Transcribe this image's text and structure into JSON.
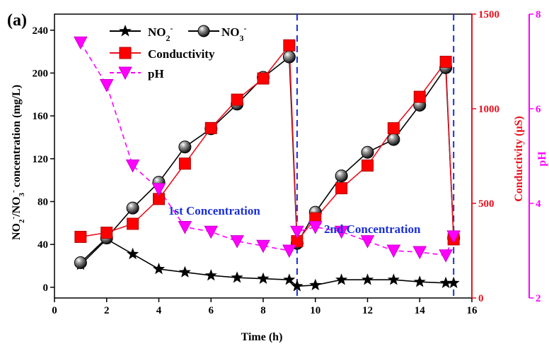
{
  "chart_data": {
    "type": "line",
    "panel_label": "(a)",
    "xlabel": "Time (h)",
    "xlim": [
      0,
      16
    ],
    "xticks": [
      0,
      2,
      4,
      6,
      8,
      10,
      12,
      14,
      16
    ],
    "left_axis": {
      "label": "NO2-/NO3- concentration (mg/L)",
      "label_parts": {
        "a": "NO",
        "sub1": "2",
        "sup1": "-",
        "b": "/NO",
        "sub2": "3",
        "sup2": "-",
        "c": " concentration (mg/L)"
      },
      "ylim": [
        -10,
        255
      ],
      "ticks": [
        0,
        40,
        80,
        120,
        160,
        200,
        240
      ],
      "color": "#000000"
    },
    "right_axis_1": {
      "label": "Conductivity (μS)",
      "ylim": [
        0,
        1500
      ],
      "ticks": [
        0,
        500,
        1000,
        1500
      ],
      "color": "#e8111f"
    },
    "right_axis_2": {
      "label": "pH",
      "ylim": [
        2,
        8
      ],
      "ticks": [
        2,
        4,
        6,
        8
      ],
      "color": "#ff00ff"
    },
    "legend": [
      {
        "text": "NO",
        "sub": "2",
        "sup": "-"
      },
      {
        "text": "NO",
        "sub": "3",
        "sup": "-"
      },
      {
        "text": "Conductivity"
      },
      {
        "text": "pH"
      }
    ],
    "annotations": [
      "1st Concentration",
      "2nd Concentration"
    ],
    "vlines": [
      9.3,
      15.3
    ],
    "series": [
      {
        "name": "NO2-",
        "axis": "left",
        "color": "#000000",
        "marker": "star",
        "x": [
          1,
          2,
          3,
          4,
          5,
          6,
          7,
          8,
          9,
          9.3,
          10,
          11,
          12,
          13,
          14,
          15,
          15.3
        ],
        "values": [
          21,
          45,
          31,
          17,
          14,
          11,
          9,
          8,
          7,
          1,
          2,
          7,
          7,
          7,
          5,
          4,
          4
        ]
      },
      {
        "name": "NO3-",
        "axis": "left",
        "color": "#000000",
        "marker": "ball",
        "x": [
          1,
          2,
          3,
          4,
          5,
          6,
          7,
          8,
          9,
          9.3,
          10,
          11,
          12,
          13,
          14,
          15,
          15.3
        ],
        "values": [
          23,
          46,
          74,
          98,
          131,
          148,
          171,
          196,
          215,
          41,
          70,
          104,
          126,
          138,
          170,
          205,
          46
        ]
      },
      {
        "name": "Conductivity",
        "axis": "right1",
        "color": "#e8111f",
        "marker": "square",
        "x": [
          1,
          2,
          3,
          4,
          5,
          6,
          7,
          8,
          9,
          9.3,
          10,
          11,
          12,
          13,
          14,
          15,
          15.3
        ],
        "values": [
          323,
          345,
          392,
          523,
          710,
          898,
          1048,
          1160,
          1335,
          300,
          421,
          580,
          700,
          897,
          1063,
          1248,
          310
        ]
      },
      {
        "name": "pH",
        "axis": "right2",
        "color": "#ff00ff",
        "marker": "triangle-down",
        "x": [
          1,
          2,
          3,
          4,
          5,
          6,
          7,
          8,
          9,
          9.3,
          10,
          11,
          12,
          13,
          14,
          15,
          15.3
        ],
        "values": [
          7.4,
          6.5,
          4.8,
          4.3,
          3.5,
          3.4,
          3.2,
          3.1,
          3.0,
          3.4,
          3.5,
          3.4,
          3.2,
          3.0,
          2.97,
          2.9,
          3.3
        ]
      }
    ]
  }
}
